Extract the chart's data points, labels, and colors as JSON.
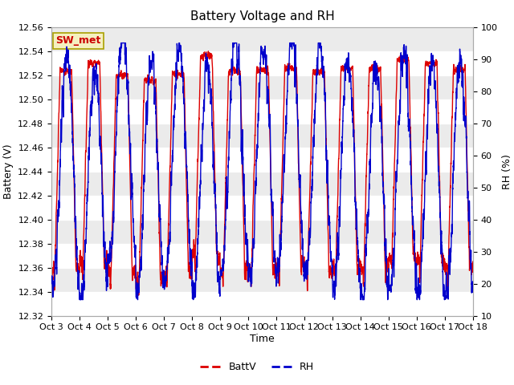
{
  "title": "Battery Voltage and RH",
  "xlabel": "Time",
  "ylabel_left": "Battery (V)",
  "ylabel_right": "RH (%)",
  "annotation": "SW_met",
  "annotation_color": "#cc0000",
  "annotation_bg": "#f5f0c0",
  "annotation_border": "#aaa000",
  "x_tick_labels": [
    "Oct 3",
    "Oct 4",
    "Oct 5",
    "Oct 6",
    "Oct 7",
    "Oct 8",
    "Oct 9",
    "Oct 10",
    "Oct 11",
    "Oct 12",
    "Oct 13",
    "Oct 14",
    "Oct 15",
    "Oct 16",
    "Oct 17",
    "Oct 18"
  ],
  "ylim_left": [
    12.32,
    12.56
  ],
  "ylim_right": [
    10,
    100
  ],
  "batt_color": "#dd0000",
  "rh_color": "#0000cc",
  "legend_batt": "BattV",
  "legend_rh": "RH",
  "bg_color": "#ffffff",
  "plot_bg_light": "#ebebeb",
  "plot_bg_dark": "#d8d8d8",
  "title_fontsize": 11,
  "label_fontsize": 9,
  "tick_fontsize": 8,
  "legend_fontsize": 9
}
